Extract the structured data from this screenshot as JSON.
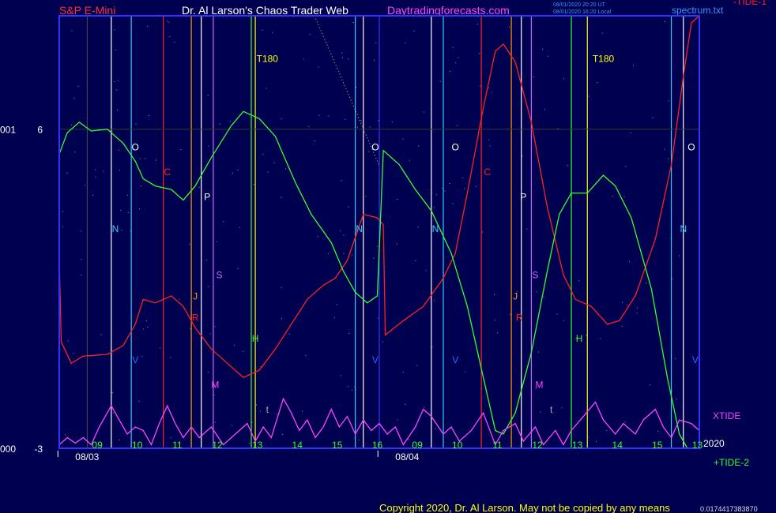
{
  "header": {
    "symbol": "S&P E-Mini",
    "author": "Dr. Al Larson's Chaos Trader Web",
    "site": "Daytradingforecasts.com",
    "timestamp_line1": "08/01/2020 20:20 UT",
    "timestamp_line2": "08/01/2020 16:20 Local",
    "spectrum_file": "spectrum.txt",
    "tide1_label": "-TIDE-1"
  },
  "footer": {
    "copyright": "Copyright 2020, Dr. Al Larson. May not be copied by any means",
    "trailing_digits": "0.0174417383870"
  },
  "colors": {
    "background": "#000050",
    "frame": "#3333ff",
    "tide1": "#ff2020",
    "tide2": "#33ff33",
    "xtide": "#ff44ff",
    "symbol": "#ff3030",
    "author": "#ffffff",
    "site": "#ff44ff",
    "copyright": "#ffff00"
  },
  "chart_data": {
    "type": "line",
    "title": "S&P E-Mini",
    "y_ticks": [
      {
        "value": 6,
        "label": "6",
        "prefix": "001"
      },
      {
        "value": -3,
        "label": "-3",
        "prefix": "000"
      }
    ],
    "ylim": [
      -3,
      9.2
    ],
    "hour_ticks": [
      "09",
      "10",
      "11",
      "12",
      "13",
      "14",
      "15",
      "16",
      "09",
      "10",
      "11",
      "12",
      "13",
      "14",
      "15",
      "13"
    ],
    "date_labels": [
      {
        "label": "08/03",
        "at_hour": 0.4
      },
      {
        "label": "08/04",
        "at_hour": 8.4
      }
    ],
    "time_range_hours": [
      0,
      16
    ],
    "year_label": "2020",
    "annotations": [
      {
        "text": "T180",
        "hour": 5.2,
        "value": 7.9,
        "color": "#ffff00"
      },
      {
        "text": "T180",
        "hour": 13.6,
        "value": 7.9,
        "color": "#ffff00"
      },
      {
        "text": "O",
        "hour": 1.9,
        "value": 5.4,
        "color": "#ffffff"
      },
      {
        "text": "O",
        "hour": 7.9,
        "value": 5.4,
        "color": "#ffffff"
      },
      {
        "text": "O",
        "hour": 9.9,
        "value": 5.4,
        "color": "#ffffff"
      },
      {
        "text": "O",
        "hour": 15.8,
        "value": 5.4,
        "color": "#ffffff"
      },
      {
        "text": "C",
        "hour": 2.7,
        "value": 4.7,
        "color": "#ff2020"
      },
      {
        "text": "C",
        "hour": 10.7,
        "value": 4.7,
        "color": "#ff2020"
      },
      {
        "text": "P",
        "hour": 3.7,
        "value": 4.0,
        "color": "#ffffff"
      },
      {
        "text": "P",
        "hour": 11.6,
        "value": 4.0,
        "color": "#ffffff"
      },
      {
        "text": "N",
        "hour": 1.4,
        "value": 3.1,
        "color": "#33ccff"
      },
      {
        "text": "N",
        "hour": 7.5,
        "value": 3.1,
        "color": "#33ccff"
      },
      {
        "text": "N",
        "hour": 9.4,
        "value": 3.1,
        "color": "#33ccff"
      },
      {
        "text": "N",
        "hour": 15.6,
        "value": 3.1,
        "color": "#33ccff"
      },
      {
        "text": "S",
        "hour": 4.0,
        "value": 1.8,
        "color": "#cc66ff"
      },
      {
        "text": "S",
        "hour": 11.9,
        "value": 1.8,
        "color": "#cc66ff"
      },
      {
        "text": "J",
        "hour": 3.4,
        "value": 1.2,
        "color": "#ff9900"
      },
      {
        "text": "J",
        "hour": 11.4,
        "value": 1.2,
        "color": "#ff9900"
      },
      {
        "text": "R",
        "hour": 3.4,
        "value": 0.6,
        "color": "#ff2020"
      },
      {
        "text": "R",
        "hour": 11.5,
        "value": 0.6,
        "color": "#ff2020"
      },
      {
        "text": "H",
        "hour": 4.9,
        "value": 0.0,
        "color": "#33ff33"
      },
      {
        "text": "H",
        "hour": 13.0,
        "value": 0.0,
        "color": "#33ff33"
      },
      {
        "text": "V",
        "hour": 1.9,
        "value": -0.6,
        "color": "#3366ff"
      },
      {
        "text": "V",
        "hour": 7.9,
        "value": -0.6,
        "color": "#3366ff"
      },
      {
        "text": "V",
        "hour": 9.9,
        "value": -0.6,
        "color": "#3366ff"
      },
      {
        "text": "V",
        "hour": 15.9,
        "value": -0.6,
        "color": "#3366ff"
      },
      {
        "text": "M",
        "hour": 3.9,
        "value": -1.3,
        "color": "#ff44ff"
      },
      {
        "text": "M",
        "hour": 12.0,
        "value": -1.3,
        "color": "#ff44ff"
      },
      {
        "text": "t",
        "hour": 5.2,
        "value": -2.0,
        "color": "#aaaaaa"
      },
      {
        "text": "t",
        "hour": 12.3,
        "value": -2.0,
        "color": "#aaaaaa"
      }
    ],
    "vertical_lines": [
      {
        "hour": 0.7,
        "color": "#444444"
      },
      {
        "hour": 1.3,
        "color": "#ffffff"
      },
      {
        "hour": 1.8,
        "color": "#33ccff"
      },
      {
        "hour": 2.6,
        "color": "#ff2020"
      },
      {
        "hour": 3.3,
        "color": "#ff9900"
      },
      {
        "hour": 3.55,
        "color": "#ffffff"
      },
      {
        "hour": 3.85,
        "color": "#cc66ff"
      },
      {
        "hour": 4.8,
        "color": "#33ff33"
      },
      {
        "hour": 4.9,
        "color": "#ffff00"
      },
      {
        "hour": 7.4,
        "color": "#33ccff"
      },
      {
        "hour": 7.6,
        "color": "#ffffff"
      },
      {
        "hour": 8.0,
        "color": "#3333ff"
      },
      {
        "hour": 9.3,
        "color": "#ffffff"
      },
      {
        "hour": 9.6,
        "color": "#33ccff"
      },
      {
        "hour": 10.55,
        "color": "#ff2020"
      },
      {
        "hour": 11.3,
        "color": "#ff9900"
      },
      {
        "hour": 11.55,
        "color": "#ffffff"
      },
      {
        "hour": 11.8,
        "color": "#cc66ff"
      },
      {
        "hour": 12.8,
        "color": "#33ff33"
      },
      {
        "hour": 13.2,
        "color": "#ffff00"
      },
      {
        "hour": 15.3,
        "color": "#33ccff"
      },
      {
        "hour": 15.6,
        "color": "#ffffff"
      }
    ],
    "series": [
      {
        "name": "-TIDE-1",
        "color": "#ff2020",
        "points": [
          [
            0,
            2.3
          ],
          [
            0.05,
            0.0
          ],
          [
            0.3,
            -0.6
          ],
          [
            0.6,
            -0.4
          ],
          [
            1.2,
            -0.35
          ],
          [
            1.6,
            -0.1
          ],
          [
            1.9,
            0.5
          ],
          [
            2.1,
            1.2
          ],
          [
            2.4,
            1.1
          ],
          [
            2.8,
            1.3
          ],
          [
            3.1,
            1.0
          ],
          [
            3.4,
            0.4
          ],
          [
            3.8,
            -0.2
          ],
          [
            4.3,
            -0.7
          ],
          [
            4.6,
            -1.0
          ],
          [
            5.0,
            -0.8
          ],
          [
            5.4,
            -0.2
          ],
          [
            5.8,
            0.5
          ],
          [
            6.2,
            1.2
          ],
          [
            6.6,
            1.6
          ],
          [
            6.9,
            1.8
          ],
          [
            7.2,
            2.3
          ],
          [
            7.6,
            3.6
          ],
          [
            7.95,
            3.5
          ],
          [
            8.1,
            3.3
          ],
          [
            8.15,
            0.2
          ],
          [
            8.6,
            0.6
          ],
          [
            9.1,
            1.0
          ],
          [
            9.6,
            1.8
          ],
          [
            9.9,
            2.5
          ],
          [
            10.2,
            4.2
          ],
          [
            10.6,
            6.6
          ],
          [
            10.9,
            8.2
          ],
          [
            11.1,
            8.4
          ],
          [
            11.4,
            7.9
          ],
          [
            11.8,
            6.2
          ],
          [
            12.2,
            3.8
          ],
          [
            12.6,
            1.9
          ],
          [
            12.9,
            1.2
          ],
          [
            13.3,
            1.0
          ],
          [
            13.7,
            0.5
          ],
          [
            14.0,
            0.6
          ],
          [
            14.4,
            1.3
          ],
          [
            14.9,
            2.9
          ],
          [
            15.3,
            5.0
          ],
          [
            15.6,
            7.5
          ],
          [
            15.8,
            9.0
          ],
          [
            16.0,
            9.2
          ]
        ]
      },
      {
        "name": "+TIDE-2",
        "color": "#33ff33",
        "points": [
          [
            0,
            5.3
          ],
          [
            0.2,
            5.9
          ],
          [
            0.5,
            6.2
          ],
          [
            0.8,
            5.95
          ],
          [
            1.2,
            6.0
          ],
          [
            1.6,
            5.6
          ],
          [
            1.9,
            5.1
          ],
          [
            2.1,
            4.6
          ],
          [
            2.4,
            4.4
          ],
          [
            2.8,
            4.3
          ],
          [
            3.1,
            4.0
          ],
          [
            3.4,
            4.4
          ],
          [
            3.8,
            5.2
          ],
          [
            4.3,
            6.1
          ],
          [
            4.6,
            6.5
          ],
          [
            5.0,
            6.3
          ],
          [
            5.4,
            5.8
          ],
          [
            5.9,
            4.5
          ],
          [
            6.3,
            3.6
          ],
          [
            6.8,
            2.8
          ],
          [
            7.1,
            2.0
          ],
          [
            7.4,
            1.4
          ],
          [
            7.7,
            1.1
          ],
          [
            7.95,
            1.3
          ],
          [
            8.1,
            5.4
          ],
          [
            8.5,
            5.0
          ],
          [
            8.9,
            4.3
          ],
          [
            9.3,
            3.7
          ],
          [
            9.8,
            2.5
          ],
          [
            10.2,
            1.0
          ],
          [
            10.6,
            -1.0
          ],
          [
            10.9,
            -2.5
          ],
          [
            11.1,
            -2.6
          ],
          [
            11.4,
            -2.0
          ],
          [
            11.8,
            -0.3
          ],
          [
            12.2,
            2.0
          ],
          [
            12.5,
            3.6
          ],
          [
            12.8,
            4.2
          ],
          [
            13.2,
            4.2
          ],
          [
            13.6,
            4.7
          ],
          [
            13.9,
            4.4
          ],
          [
            14.3,
            3.5
          ],
          [
            14.8,
            1.5
          ],
          [
            15.2,
            -1.0
          ],
          [
            15.5,
            -2.6
          ],
          [
            15.7,
            -3.0
          ]
        ]
      },
      {
        "name": "XTIDE",
        "color": "#ff44ff",
        "points": [
          [
            0,
            -2.9
          ],
          [
            0.2,
            -2.7
          ],
          [
            0.4,
            -2.85
          ],
          [
            0.6,
            -2.7
          ],
          [
            0.8,
            -2.9
          ],
          [
            1.0,
            -2.4
          ],
          [
            1.3,
            -1.8
          ],
          [
            1.5,
            -2.2
          ],
          [
            1.7,
            -2.6
          ],
          [
            1.9,
            -2.4
          ],
          [
            2.1,
            -2.5
          ],
          [
            2.3,
            -2.9
          ],
          [
            2.5,
            -2.3
          ],
          [
            2.7,
            -1.8
          ],
          [
            2.9,
            -2.3
          ],
          [
            3.1,
            -2.7
          ],
          [
            3.3,
            -2.4
          ],
          [
            3.5,
            -2.7
          ],
          [
            3.8,
            -2.4
          ],
          [
            4.1,
            -2.9
          ],
          [
            4.4,
            -2.6
          ],
          [
            4.7,
            -2.3
          ],
          [
            4.9,
            -2.8
          ],
          [
            5.1,
            -2.4
          ],
          [
            5.3,
            -2.7
          ],
          [
            5.6,
            -1.6
          ],
          [
            5.8,
            -2.0
          ],
          [
            6.0,
            -2.5
          ],
          [
            6.2,
            -2.2
          ],
          [
            6.4,
            -2.7
          ],
          [
            6.6,
            -2.4
          ],
          [
            6.8,
            -1.9
          ],
          [
            7.0,
            -2.4
          ],
          [
            7.2,
            -2.1
          ],
          [
            7.4,
            -2.6
          ],
          [
            7.6,
            -2.2
          ],
          [
            7.8,
            -2.5
          ],
          [
            8.0,
            -2.3
          ],
          [
            8.2,
            -2.6
          ],
          [
            8.4,
            -2.4
          ],
          [
            8.6,
            -2.9
          ],
          [
            8.9,
            -2.4
          ],
          [
            9.1,
            -1.9
          ],
          [
            9.3,
            -2.1
          ],
          [
            9.6,
            -2.6
          ],
          [
            9.8,
            -2.4
          ],
          [
            10.0,
            -2.8
          ],
          [
            10.3,
            -2.5
          ],
          [
            10.6,
            -2.0
          ],
          [
            10.9,
            -2.9
          ],
          [
            11.1,
            -2.5
          ],
          [
            11.4,
            -2.3
          ],
          [
            11.6,
            -2.8
          ],
          [
            11.9,
            -2.4
          ],
          [
            12.1,
            -2.9
          ],
          [
            12.4,
            -2.5
          ],
          [
            12.6,
            -2.9
          ],
          [
            12.8,
            -2.5
          ],
          [
            13.1,
            -2.1
          ],
          [
            13.4,
            -1.7
          ],
          [
            13.6,
            -2.2
          ],
          [
            13.9,
            -2.6
          ],
          [
            14.1,
            -2.3
          ],
          [
            14.4,
            -2.6
          ],
          [
            14.6,
            -2.2
          ],
          [
            14.9,
            -1.9
          ],
          [
            15.1,
            -2.4
          ],
          [
            15.3,
            -2.7
          ],
          [
            15.5,
            -2.2
          ],
          [
            15.8,
            -2.3
          ],
          [
            16.0,
            -2.5
          ]
        ]
      }
    ],
    "legend": {
      "xtide": "XTIDE",
      "tide2": "+TIDE-2",
      "year": "2020"
    }
  }
}
